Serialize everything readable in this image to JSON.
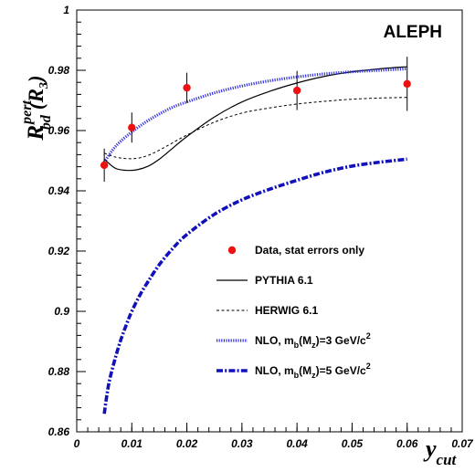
{
  "chart_data": {
    "type": "line",
    "experiment_label": "ALEPH",
    "xlabel": {
      "main": "y",
      "sub": "cut"
    },
    "ylabel": {
      "main": "R",
      "sup": "pert",
      "sub": "bd",
      "suffix_open": "(R",
      "suffix_sub": "3",
      "suffix_close": ")"
    },
    "xlim": [
      0,
      0.07
    ],
    "ylim": [
      0.86,
      1.0
    ],
    "x_ticks": [
      0,
      0.01,
      0.02,
      0.03,
      0.04,
      0.05,
      0.06,
      0.07
    ],
    "x_tick_labels": [
      "0",
      "0.01",
      "0.02",
      "0.03",
      "0.04",
      "0.05",
      "0.06",
      "0.07"
    ],
    "y_ticks": [
      0.86,
      0.88,
      0.9,
      0.92,
      0.94,
      0.96,
      0.98,
      1.0
    ],
    "y_tick_labels": [
      "0.86",
      "0.88",
      "0.9",
      "0.92",
      "0.94",
      "0.96",
      "0.98",
      "1"
    ],
    "data_points": {
      "x": [
        0.005,
        0.01,
        0.02,
        0.04,
        0.06
      ],
      "y": [
        0.9485,
        0.961,
        0.9742,
        0.9733,
        0.9755
      ],
      "err": [
        0.0055,
        0.005,
        0.005,
        0.0065,
        0.009
      ],
      "color": "#ee1111"
    },
    "series": [
      {
        "key": "pythia",
        "style": "solid",
        "color": "#000000",
        "x": [
          0.005,
          0.007,
          0.009,
          0.011,
          0.013,
          0.015,
          0.017,
          0.02,
          0.025,
          0.03,
          0.035,
          0.04,
          0.045,
          0.05,
          0.055,
          0.06
        ],
        "y": [
          0.9505,
          0.9475,
          0.9468,
          0.947,
          0.9482,
          0.9505,
          0.9535,
          0.958,
          0.9645,
          0.9695,
          0.973,
          0.9758,
          0.978,
          0.9795,
          0.9805,
          0.9812
        ]
      },
      {
        "key": "herwig",
        "style": "dashed",
        "color": "#000000",
        "x": [
          0.005,
          0.007,
          0.009,
          0.011,
          0.013,
          0.015,
          0.017,
          0.02,
          0.025,
          0.03,
          0.035,
          0.04,
          0.045,
          0.05,
          0.055,
          0.06
        ],
        "y": [
          0.9525,
          0.9512,
          0.9507,
          0.9508,
          0.9518,
          0.9535,
          0.9555,
          0.9585,
          0.9628,
          0.9658,
          0.9675,
          0.9688,
          0.9697,
          0.9704,
          0.9708,
          0.971
        ]
      },
      {
        "key": "nlo3",
        "style": "dotted-thick",
        "color": "#3333dd",
        "x": [
          0.005,
          0.0065,
          0.008,
          0.01,
          0.0125,
          0.015,
          0.0175,
          0.02,
          0.025,
          0.03,
          0.035,
          0.04,
          0.045,
          0.05,
          0.055,
          0.06
        ],
        "y": [
          0.9495,
          0.9535,
          0.9565,
          0.9595,
          0.9628,
          0.9655,
          0.9678,
          0.9695,
          0.9725,
          0.9748,
          0.9765,
          0.9778,
          0.9788,
          0.9795,
          0.98,
          0.9805
        ]
      },
      {
        "key": "nlo5",
        "style": "dashdot-thick",
        "color": "#1111bb",
        "x": [
          0.005,
          0.0055,
          0.006,
          0.007,
          0.008,
          0.009,
          0.01,
          0.0115,
          0.013,
          0.015,
          0.0175,
          0.02,
          0.025,
          0.03,
          0.035,
          0.04,
          0.045,
          0.05,
          0.055,
          0.06
        ],
        "y": [
          0.866,
          0.8725,
          0.8775,
          0.8845,
          0.8905,
          0.8955,
          0.9,
          0.9055,
          0.91,
          0.9155,
          0.921,
          0.9255,
          0.9322,
          0.937,
          0.9405,
          0.9435,
          0.9462,
          0.9482,
          0.9495,
          0.9505
        ]
      }
    ],
    "legend": {
      "position": "lower-right",
      "entries": [
        {
          "key": "data",
          "text": "Data, stat errors only"
        },
        {
          "key": "pythia",
          "text": "PYTHIA 6.1"
        },
        {
          "key": "herwig",
          "text": "HERWIG 6.1"
        },
        {
          "key": "nlo3",
          "text_parts": [
            "NLO, m",
            "b",
            "(M",
            "z",
            ")=3 GeV/c",
            "2"
          ]
        },
        {
          "key": "nlo5",
          "text_parts": [
            "NLO, m",
            "b",
            "(M",
            "z",
            ")=5 GeV/c",
            "2"
          ]
        }
      ]
    }
  }
}
